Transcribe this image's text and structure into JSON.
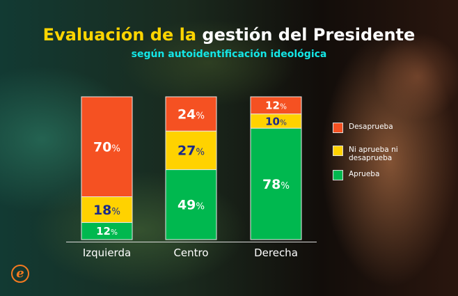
{
  "title": {
    "part1": "Evaluación de la",
    "part2": "gestión del Presidente"
  },
  "subtitle": "según autoidentificación ideológica",
  "chart_data": {
    "type": "bar",
    "stacked": true,
    "categories": [
      "Izquierda",
      "Centro",
      "Derecha"
    ],
    "series": [
      {
        "name": "Aprueba",
        "color": "#00b84f",
        "label_color": "#ffffff",
        "values": [
          12,
          49,
          78
        ]
      },
      {
        "name": "Ni aprueba ni desaprueba",
        "color": "#ffd200",
        "label_color": "#1a2a8a",
        "values": [
          18,
          27,
          10
        ]
      },
      {
        "name": "Desaprueba",
        "color": "#f55122",
        "label_color": "#ffffff",
        "values": [
          70,
          24,
          12
        ]
      }
    ],
    "ylim": [
      0,
      100
    ],
    "grid": false,
    "legend": "right",
    "value_suffix": "%"
  },
  "legend": [
    {
      "label": "Desaprueba",
      "color": "#f55122"
    },
    {
      "label": "Ni aprueba ni desaprueba",
      "color": "#ffd200"
    },
    {
      "label": "Aprueba",
      "color": "#00b84f"
    }
  ],
  "logo": "e"
}
